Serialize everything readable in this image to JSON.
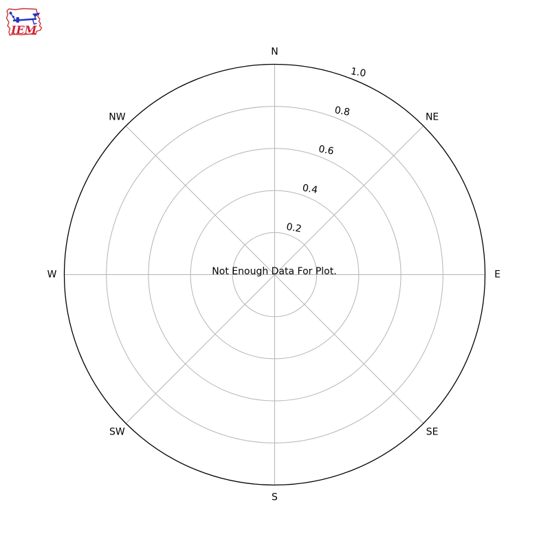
{
  "page": {
    "background_color": "#ffffff"
  },
  "logo": {
    "text": "IEM",
    "description": "iowa-state-outline-with-weathervane",
    "outline_color": "#cc3333",
    "vane_color": "#2433c0",
    "text_color": "#cc2233"
  },
  "chart_data": {
    "type": "polar",
    "subtype": "windrose",
    "title": "",
    "center_message": "Not Enough Data For Plot.",
    "series": [],
    "grid": true,
    "rlim": [
      0,
      1.0
    ],
    "angular_ticks": [
      {
        "label": "N",
        "angle_deg": 0
      },
      {
        "label": "NE",
        "angle_deg": 45
      },
      {
        "label": "E",
        "angle_deg": 90
      },
      {
        "label": "SE",
        "angle_deg": 135
      },
      {
        "label": "S",
        "angle_deg": 180
      },
      {
        "label": "SW",
        "angle_deg": 225
      },
      {
        "label": "W",
        "angle_deg": 270
      },
      {
        "label": "NW",
        "angle_deg": 315
      }
    ],
    "radial_ticks": [
      {
        "value": 0.2,
        "label": "0.2"
      },
      {
        "value": 0.4,
        "label": "0.4"
      },
      {
        "value": 0.6,
        "label": "0.6"
      },
      {
        "value": 0.8,
        "label": "0.8"
      },
      {
        "value": 1.0,
        "label": "1.0"
      }
    ],
    "radial_label_angle_deg": 22.5,
    "colors": {
      "grid": "#b4b4b4",
      "spine": "#000000",
      "text": "#000000"
    }
  }
}
